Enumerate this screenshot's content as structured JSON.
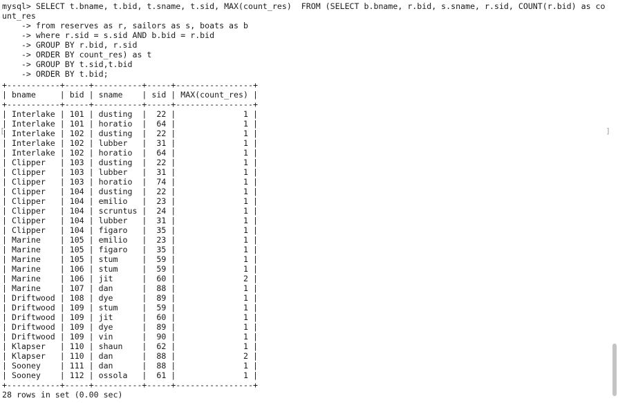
{
  "query_lines": [
    "mysql> SELECT t.bname, t.bid, t.sname, t.sid, MAX(count_res)  FROM (SELECT b.bname, r.bid, s.sname, r.sid, COUNT(r.bid) as co",
    "unt_res",
    "    -> from reserves as r, sailors as s, boats as b",
    "    -> where r.sid = s.sid AND b.bid = r.bid",
    "    -> GROUP BY r.bid, r.sid",
    "    -> ORDER BY count_res) as t",
    "    -> GROUP BY t.sid,t.bid",
    "    -> ORDER BY t.bid;"
  ],
  "table": {
    "columns": [
      "bname",
      "bid",
      "sname",
      "sid",
      "MAX(count_res)"
    ],
    "rows": [
      [
        "Interlake",
        "101",
        "dusting",
        "22",
        "1"
      ],
      [
        "Interlake",
        "101",
        "horatio",
        "64",
        "1"
      ],
      [
        "Interlake",
        "102",
        "dusting",
        "22",
        "1"
      ],
      [
        "Interlake",
        "102",
        "lubber",
        "31",
        "1"
      ],
      [
        "Interlake",
        "102",
        "horatio",
        "64",
        "1"
      ],
      [
        "Clipper",
        "103",
        "dusting",
        "22",
        "1"
      ],
      [
        "Clipper",
        "103",
        "lubber",
        "31",
        "1"
      ],
      [
        "Clipper",
        "103",
        "horatio",
        "74",
        "1"
      ],
      [
        "Clipper",
        "104",
        "dusting",
        "22",
        "1"
      ],
      [
        "Clipper",
        "104",
        "emilio",
        "23",
        "1"
      ],
      [
        "Clipper",
        "104",
        "scruntus",
        "24",
        "1"
      ],
      [
        "Clipper",
        "104",
        "lubber",
        "31",
        "1"
      ],
      [
        "Clipper",
        "104",
        "figaro",
        "35",
        "1"
      ],
      [
        "Marine",
        "105",
        "emilio",
        "23",
        "1"
      ],
      [
        "Marine",
        "105",
        "figaro",
        "35",
        "1"
      ],
      [
        "Marine",
        "105",
        "stum",
        "59",
        "1"
      ],
      [
        "Marine",
        "106",
        "stum",
        "59",
        "1"
      ],
      [
        "Marine",
        "106",
        "jit",
        "60",
        "2"
      ],
      [
        "Marine",
        "107",
        "dan",
        "88",
        "1"
      ],
      [
        "Driftwood",
        "108",
        "dye",
        "89",
        "1"
      ],
      [
        "Driftwood",
        "109",
        "stum",
        "59",
        "1"
      ],
      [
        "Driftwood",
        "109",
        "jit",
        "60",
        "1"
      ],
      [
        "Driftwood",
        "109",
        "dye",
        "89",
        "1"
      ],
      [
        "Driftwood",
        "109",
        "vin",
        "90",
        "1"
      ],
      [
        "Klapser",
        "110",
        "shaun",
        "62",
        "1"
      ],
      [
        "Klapser",
        "110",
        "dan",
        "88",
        "2"
      ],
      [
        "Sooney",
        "111",
        "dan",
        "88",
        "1"
      ],
      [
        "Sooney",
        "112",
        "ossola",
        "61",
        "1"
      ]
    ]
  },
  "result_status": "28 rows in set (0.00 sec)",
  "edge_brackets": {
    "left": "[",
    "right": "]"
  },
  "colors": {
    "background": "#ffffff",
    "text": "#1a1a1a",
    "scrollbar_thumb": "#c4c4c4"
  }
}
